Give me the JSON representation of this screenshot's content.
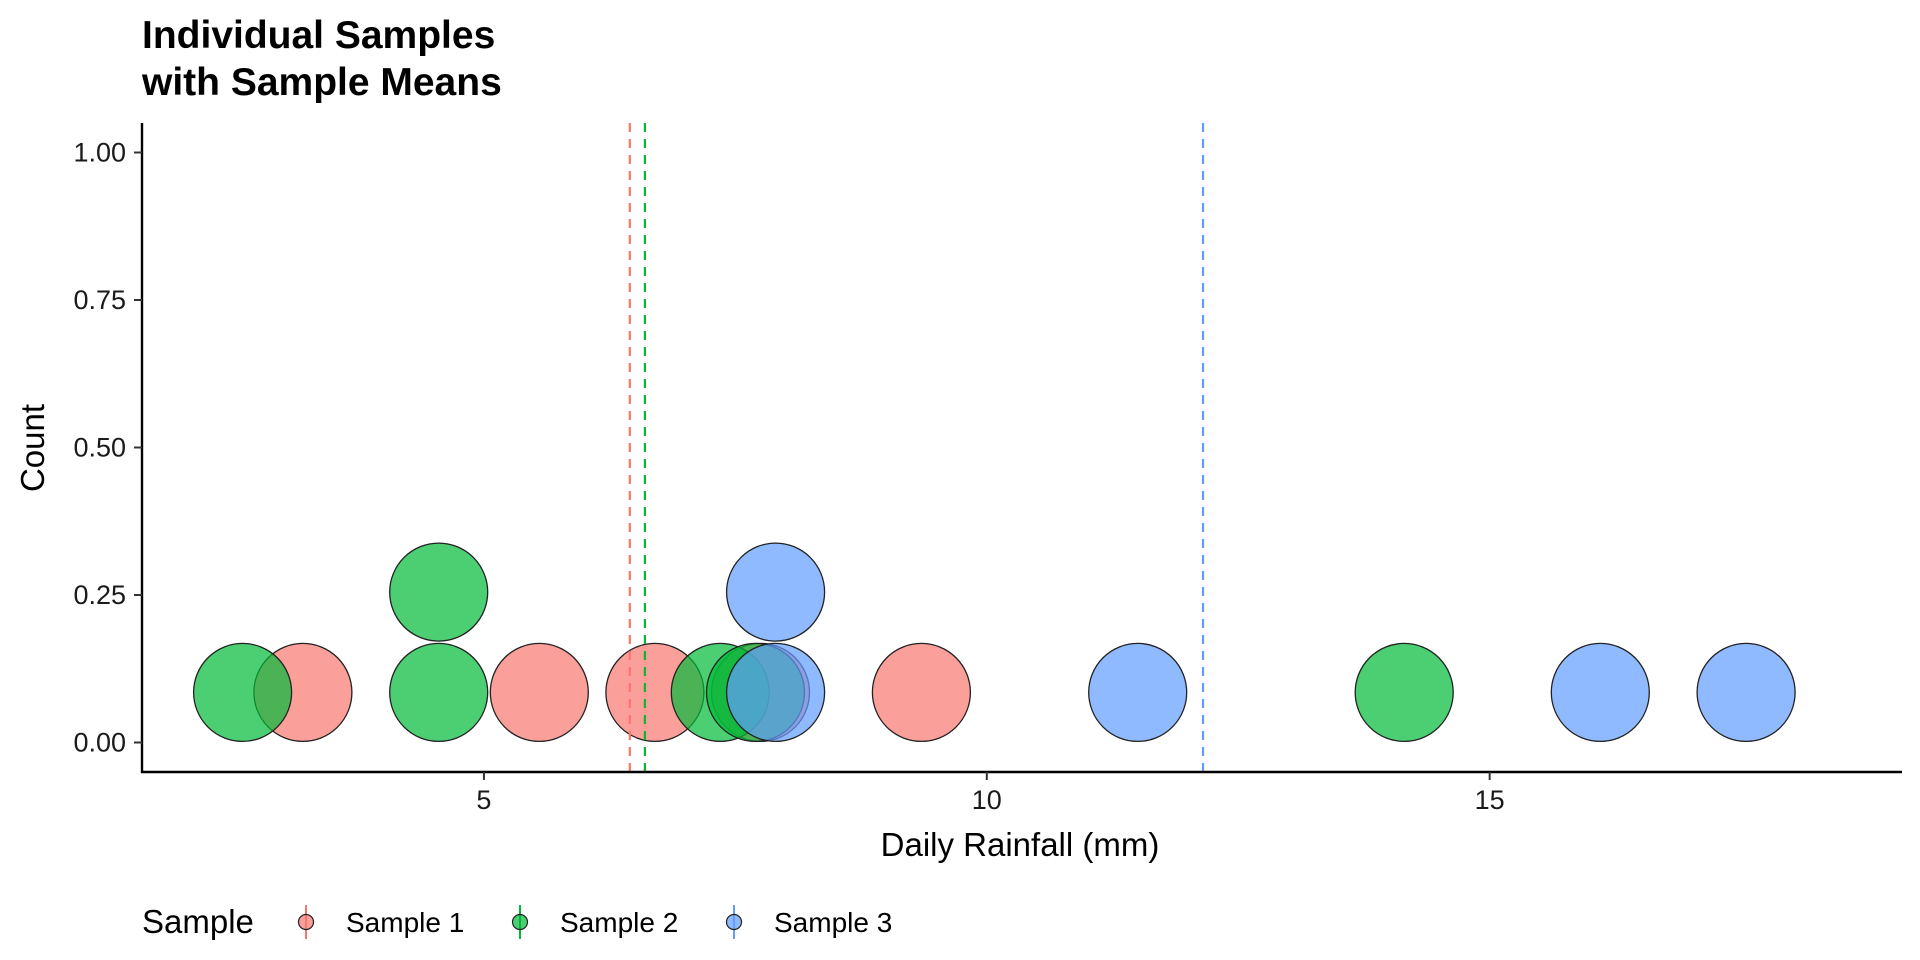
{
  "chart_data": {
    "type": "scatter",
    "title_lines": [
      "Individual Samples",
      "with Sample Means"
    ],
    "xlabel": "Daily Rainfall (mm)",
    "ylabel": "Count",
    "xlim": [
      1.6,
      19.1
    ],
    "ylim": [
      -0.05,
      1.05
    ],
    "x_ticks": [
      5,
      10,
      15
    ],
    "x_tick_labels": [
      "5",
      "10",
      "15"
    ],
    "y_ticks": [
      0,
      0.25,
      0.5,
      0.75,
      1.0
    ],
    "y_tick_labels": [
      "0.00",
      "0.25",
      "0.50",
      "0.75",
      "1.00"
    ],
    "grid": false,
    "legend": {
      "title": "Sample",
      "position": "bottom-left"
    },
    "series": [
      {
        "name": "Sample 1",
        "color": "#F8766D",
        "mean": 6.45,
        "points": [
          {
            "x": 3.2,
            "y": 0.085
          },
          {
            "x": 5.55,
            "y": 0.085
          },
          {
            "x": 6.7,
            "y": 0.085
          },
          {
            "x": 7.75,
            "y": 0.085
          },
          {
            "x": 9.35,
            "y": 0.085
          }
        ]
      },
      {
        "name": "Sample 2",
        "color": "#00BA38",
        "mean": 6.6,
        "points": [
          {
            "x": 2.6,
            "y": 0.085
          },
          {
            "x": 4.55,
            "y": 0.085
          },
          {
            "x": 4.55,
            "y": 0.255
          },
          {
            "x": 7.35,
            "y": 0.085
          },
          {
            "x": 7.7,
            "y": 0.085
          },
          {
            "x": 14.15,
            "y": 0.085
          }
        ]
      },
      {
        "name": "Sample 3",
        "color": "#619CFF",
        "mean": 12.15,
        "points": [
          {
            "x": 7.9,
            "y": 0.085
          },
          {
            "x": 7.9,
            "y": 0.255
          },
          {
            "x": 11.5,
            "y": 0.085
          },
          {
            "x": 16.1,
            "y": 0.085
          },
          {
            "x": 17.55,
            "y": 0.085
          }
        ]
      }
    ]
  }
}
